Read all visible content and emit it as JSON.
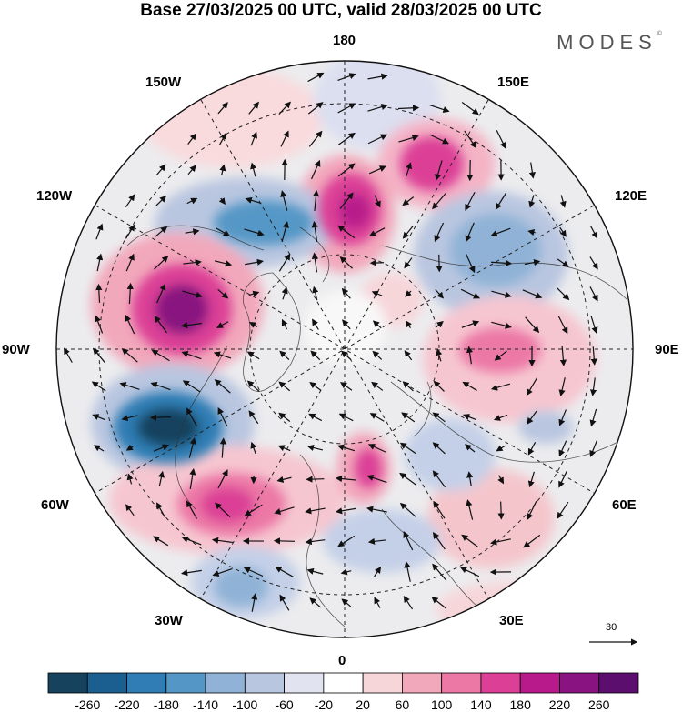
{
  "title": "Base 27/03/2025 00 UTC, valid 28/03/2025 00 UTC",
  "brand": "MODES",
  "brand_mark": "©",
  "longitude_labels": {
    "lon_180": "180",
    "lon_150e": "150E",
    "lon_120e": "120E",
    "lon_90e": "90E",
    "lon_60e": "60E",
    "lon_30e": "30E",
    "lon_0": "0",
    "lon_30w": "30W",
    "lon_60w": "60W",
    "lon_90w": "90W",
    "lon_120w": "120W",
    "lon_150w": "150W"
  },
  "reference_vector": {
    "label": "30"
  },
  "colorbar": {
    "ticks": [
      "-260",
      "-220",
      "-180",
      "-140",
      "-100",
      "-60",
      "-20",
      "20",
      "60",
      "100",
      "140",
      "180",
      "220",
      "260"
    ],
    "colors": [
      "#17425e",
      "#1a5f8f",
      "#2f7db4",
      "#5497c6",
      "#8fb2d6",
      "#b9c6e0",
      "#e2e3f0",
      "#ffffff",
      "#f7d6da",
      "#f2a8bb",
      "#ec78a6",
      "#dc3f96",
      "#b81a8b",
      "#891380",
      "#5b0e6e"
    ]
  },
  "map": {
    "projection": "north-polar-stereographic",
    "grid_lines": "dashed",
    "field": "anomaly-shading-with-wind-vectors"
  }
}
